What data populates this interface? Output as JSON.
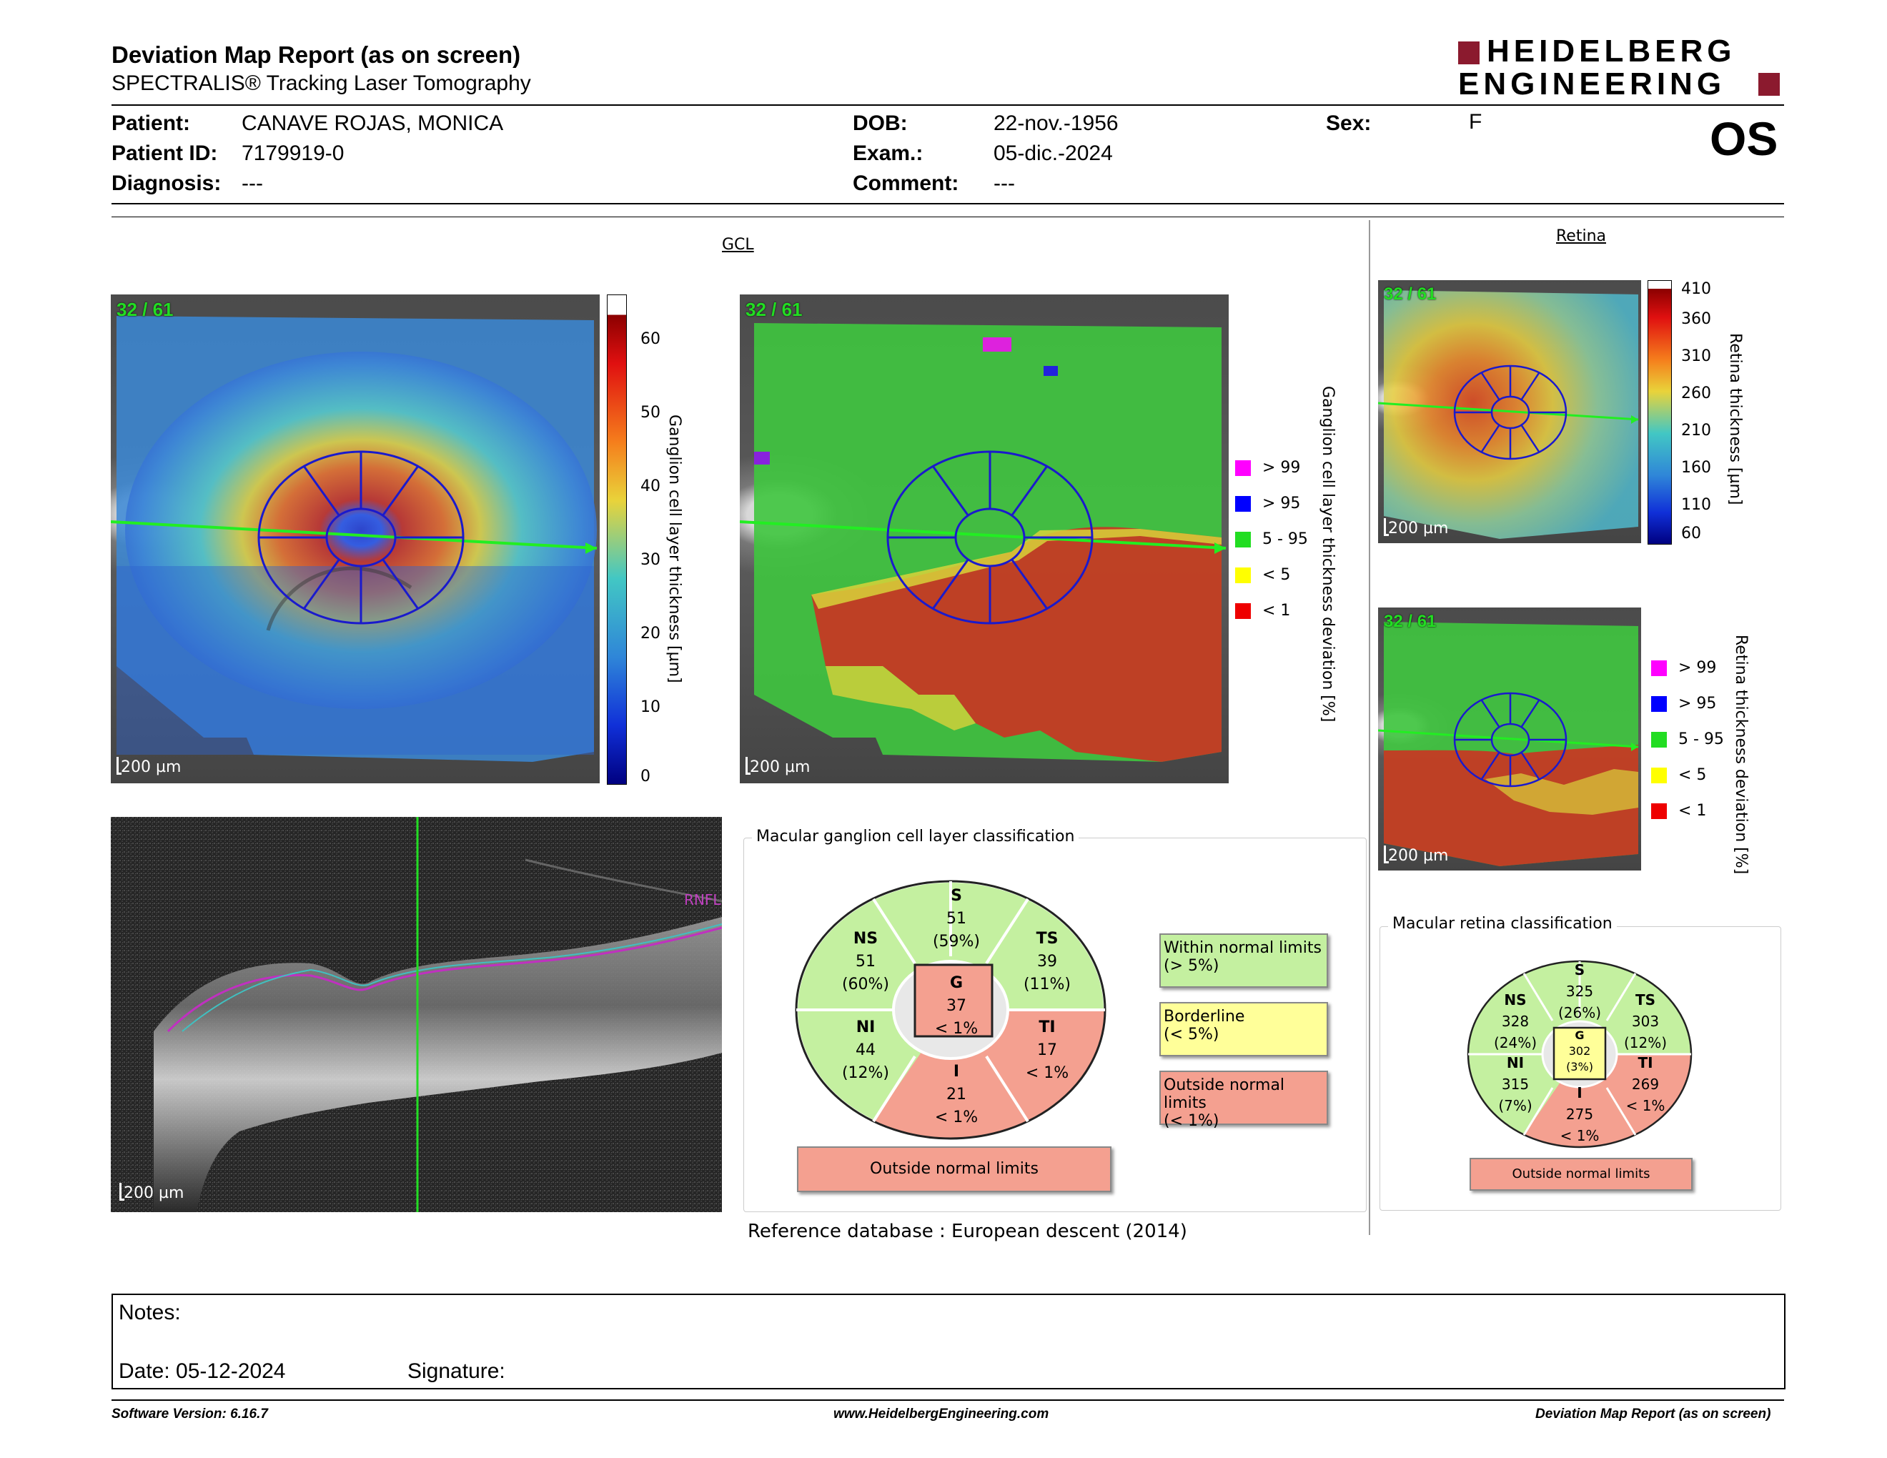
{
  "header": {
    "title": "Deviation Map Report (as on screen)",
    "subtitle": "SPECTRALIS® Tracking Laser Tomography",
    "brand_line1": "HEIDELBERG",
    "brand_line2": "ENGINEERING",
    "brand_color": "#8b1a2e"
  },
  "patient": {
    "patient_label": "Patient:",
    "patient_value": "CANAVE ROJAS, MONICA",
    "id_label": "Patient ID:",
    "id_value": "7179919-0",
    "diagnosis_label": "Diagnosis:",
    "diagnosis_value": "---",
    "dob_label": "DOB:",
    "dob_value": "22-nov.-1956",
    "exam_label": "Exam.:",
    "exam_value": "05-dic.-2024",
    "comment_label": "Comment:",
    "comment_value": "---",
    "sex_label": "Sex:",
    "sex_value": "F",
    "eye": "OS"
  },
  "gcl": {
    "section_title": "GCL",
    "counter": "32 / 61",
    "scale": "200 µm",
    "thickness_axis_label": "Ganglion cell layer thickness [µm]",
    "thickness_ticks": [
      "60",
      "50",
      "40",
      "30",
      "20",
      "10",
      "0"
    ],
    "deviation_axis_label": "Ganglion cell layer thickness deviation [%]",
    "legend": [
      {
        "label": "> 99",
        "color": "#ff00ff"
      },
      {
        "label": "> 95",
        "color": "#0000ff"
      },
      {
        "label": "5 - 95",
        "color": "#22dd22"
      },
      {
        "label": "< 5",
        "color": "#ffff00"
      },
      {
        "label": "< 1",
        "color": "#ee0000"
      }
    ]
  },
  "retina": {
    "section_title": "Retina",
    "counter": "32 / 61",
    "scale": "200 µm",
    "thickness_axis_label": "Retina thickness [µm]",
    "thickness_ticks": [
      "410",
      "360",
      "310",
      "260",
      "210",
      "160",
      "110",
      "60"
    ],
    "deviation_axis_label": "Retina thickness deviation [%]",
    "legend": [
      {
        "label": "> 99",
        "color": "#ff00ff"
      },
      {
        "label": "> 95",
        "color": "#0000ff"
      },
      {
        "label": "5 - 95",
        "color": "#22dd22"
      },
      {
        "label": "< 5",
        "color": "#ffff00"
      },
      {
        "label": "< 1",
        "color": "#ee0000"
      }
    ]
  },
  "bscan": {
    "scale": "200 µm",
    "layer_label": "RNFL"
  },
  "gcl_classification": {
    "title": "Macular ganglion cell layer classification",
    "sectors": {
      "S": {
        "name": "S",
        "value": "51",
        "pct": "(59%)",
        "color": "#c4f0a0"
      },
      "NS": {
        "name": "NS",
        "value": "51",
        "pct": "(60%)",
        "color": "#c4f0a0"
      },
      "TS": {
        "name": "TS",
        "value": "39",
        "pct": "(11%)",
        "color": "#c4f0a0"
      },
      "NI": {
        "name": "NI",
        "value": "44",
        "pct": "(12%)",
        "color": "#c4f0a0"
      },
      "TI": {
        "name": "TI",
        "value": "17",
        "pct": "< 1%",
        "color": "#f4a090"
      },
      "I": {
        "name": "I",
        "value": "21",
        "pct": "< 1%",
        "color": "#f4a090"
      },
      "G": {
        "name": "G",
        "value": "37",
        "pct": "< 1%",
        "color": "#f4a090"
      }
    },
    "result": "Outside normal limits",
    "key": [
      {
        "line1": "Within normal limits",
        "line2": "(> 5%)",
        "color": "#c4f0a0"
      },
      {
        "line1": "Borderline",
        "line2": "(< 5%)",
        "color": "#ffff99"
      },
      {
        "line1": "Outside normal limits",
        "line2": "(< 1%)",
        "color": "#f4a090"
      }
    ]
  },
  "retina_classification": {
    "title": "Macular retina classification",
    "sectors": {
      "S": {
        "name": "S",
        "value": "325",
        "pct": "(26%)",
        "color": "#c4f0a0"
      },
      "NS": {
        "name": "NS",
        "value": "328",
        "pct": "(24%)",
        "color": "#c4f0a0"
      },
      "TS": {
        "name": "TS",
        "value": "303",
        "pct": "(12%)",
        "color": "#c4f0a0"
      },
      "NI": {
        "name": "NI",
        "value": "315",
        "pct": "(7%)",
        "color": "#c4f0a0"
      },
      "TI": {
        "name": "TI",
        "value": "269",
        "pct": "< 1%",
        "color": "#f4a090"
      },
      "I": {
        "name": "I",
        "value": "275",
        "pct": "< 1%",
        "color": "#f4a090"
      },
      "G": {
        "name": "G",
        "value": "302",
        "pct": "(3%)",
        "color": "#ffff99"
      }
    },
    "result": "Outside normal limits"
  },
  "reference": "Reference database :  European descent (2014)",
  "notes": {
    "notes_label": "Notes:",
    "date_label": "Date: 05-12-2024",
    "signature_label": "Signature:"
  },
  "footer": {
    "version": "Software Version: 6.16.7",
    "website": "www.HeidelbergEngineering.com",
    "report_name": "Deviation Map Report (as on screen)"
  }
}
